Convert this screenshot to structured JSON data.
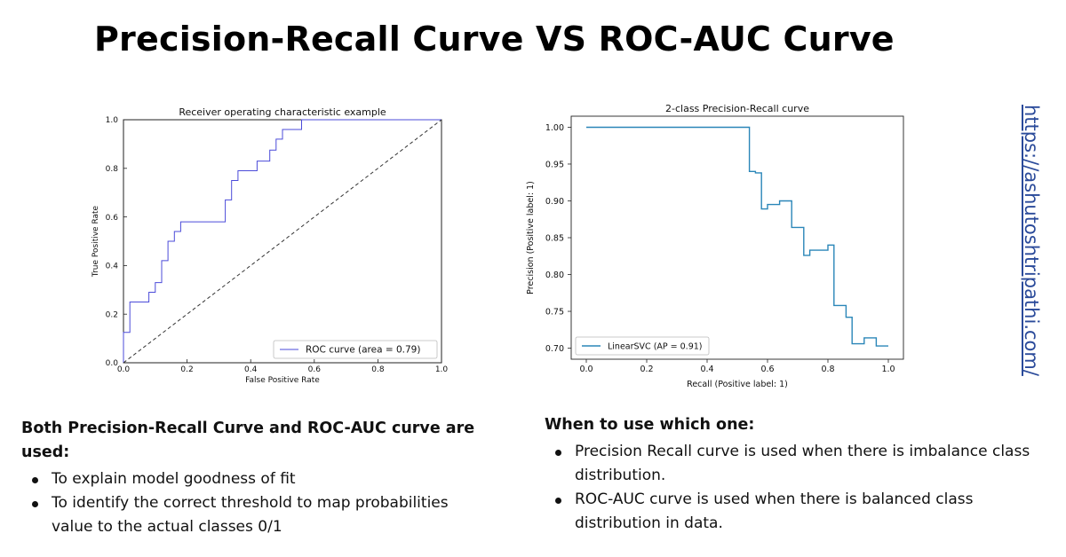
{
  "title": "Precision-Recall Curve VS ROC-AUC Curve",
  "link": "https://ashutoshtripathi.com/",
  "left_block": {
    "heading": "Both Precision-Recall Curve and ROC-AUC curve are used:",
    "items": [
      " To explain model goodness of fit",
      "To identify the correct threshold to map probabilities value to the actual classes 0/1"
    ]
  },
  "right_block": {
    "heading": "When to use which one:",
    "items": [
      "Precision Recall curve is used when there is imbalance class distribution.",
      "ROC-AUC curve is used when there is balanced class distribution in data."
    ]
  },
  "colors": {
    "roc_line": "#4b4bd9",
    "pr_line": "#2a86b8",
    "link": "#2a4a9a"
  },
  "chart_data": [
    {
      "type": "line",
      "title": "Receiver operating characteristic example",
      "xlabel": "False Positive Rate",
      "ylabel": "True Positive Rate",
      "xlim": [
        0.0,
        1.0
      ],
      "ylim": [
        0.0,
        1.0
      ],
      "xticks": [
        "0.0",
        "0.2",
        "0.4",
        "0.6",
        "0.8",
        "1.0"
      ],
      "yticks": [
        "0.0",
        "0.2",
        "0.4",
        "0.6",
        "0.8",
        "1.0"
      ],
      "grid": false,
      "legend": "lower-right",
      "series": [
        {
          "name": "ROC curve (area = 0.79)",
          "style": "solid",
          "x": [
            0.0,
            0.0,
            0.02,
            0.02,
            0.08,
            0.08,
            0.1,
            0.1,
            0.12,
            0.12,
            0.14,
            0.14,
            0.16,
            0.16,
            0.18,
            0.18,
            0.32,
            0.32,
            0.34,
            0.34,
            0.36,
            0.36,
            0.42,
            0.42,
            0.46,
            0.46,
            0.48,
            0.48,
            0.5,
            0.5,
            0.56,
            0.56,
            1.0
          ],
          "y": [
            0.0,
            0.125,
            0.125,
            0.25,
            0.25,
            0.29,
            0.29,
            0.33,
            0.33,
            0.42,
            0.42,
            0.5,
            0.5,
            0.54,
            0.54,
            0.58,
            0.58,
            0.67,
            0.67,
            0.75,
            0.75,
            0.79,
            0.79,
            0.83,
            0.83,
            0.875,
            0.875,
            0.92,
            0.92,
            0.96,
            0.96,
            1.0,
            1.0
          ]
        },
        {
          "style": "dashed",
          "x": [
            0.0,
            1.0
          ],
          "y": [
            0.0,
            1.0
          ]
        }
      ]
    },
    {
      "type": "line",
      "title": "2-class Precision-Recall curve",
      "xlabel": "Recall (Positive label: 1)",
      "ylabel": "Precision (Positive label: 1)",
      "xlim": [
        -0.05,
        1.05
      ],
      "ylim": [
        0.685,
        1.015
      ],
      "xticks": [
        "0.0",
        "0.2",
        "0.4",
        "0.6",
        "0.8",
        "1.0"
      ],
      "yticks": [
        "0.70",
        "0.75",
        "0.80",
        "0.85",
        "0.90",
        "0.95",
        "1.00"
      ],
      "grid": false,
      "legend": "lower-left",
      "series": [
        {
          "name": "LinearSVC (AP = 0.91)",
          "style": "step",
          "x": [
            0.0,
            0.54,
            0.54,
            0.56,
            0.56,
            0.58,
            0.58,
            0.6,
            0.6,
            0.64,
            0.64,
            0.68,
            0.68,
            0.7,
            0.7,
            0.72,
            0.72,
            0.74,
            0.74,
            0.8,
            0.8,
            0.82,
            0.82,
            0.86,
            0.86,
            0.88,
            0.88,
            0.92,
            0.92,
            0.96,
            0.96,
            0.98,
            0.98,
            1.0
          ],
          "y": [
            1.0,
            1.0,
            0.94,
            0.94,
            0.938,
            0.938,
            0.889,
            0.889,
            0.895,
            0.895,
            0.9,
            0.9,
            0.864,
            0.864,
            0.864,
            0.864,
            0.826,
            0.826,
            0.833,
            0.833,
            0.84,
            0.84,
            0.758,
            0.758,
            0.742,
            0.742,
            0.706,
            0.706,
            0.714,
            0.714,
            0.703,
            0.703,
            0.703,
            0.703
          ]
        }
      ]
    }
  ]
}
